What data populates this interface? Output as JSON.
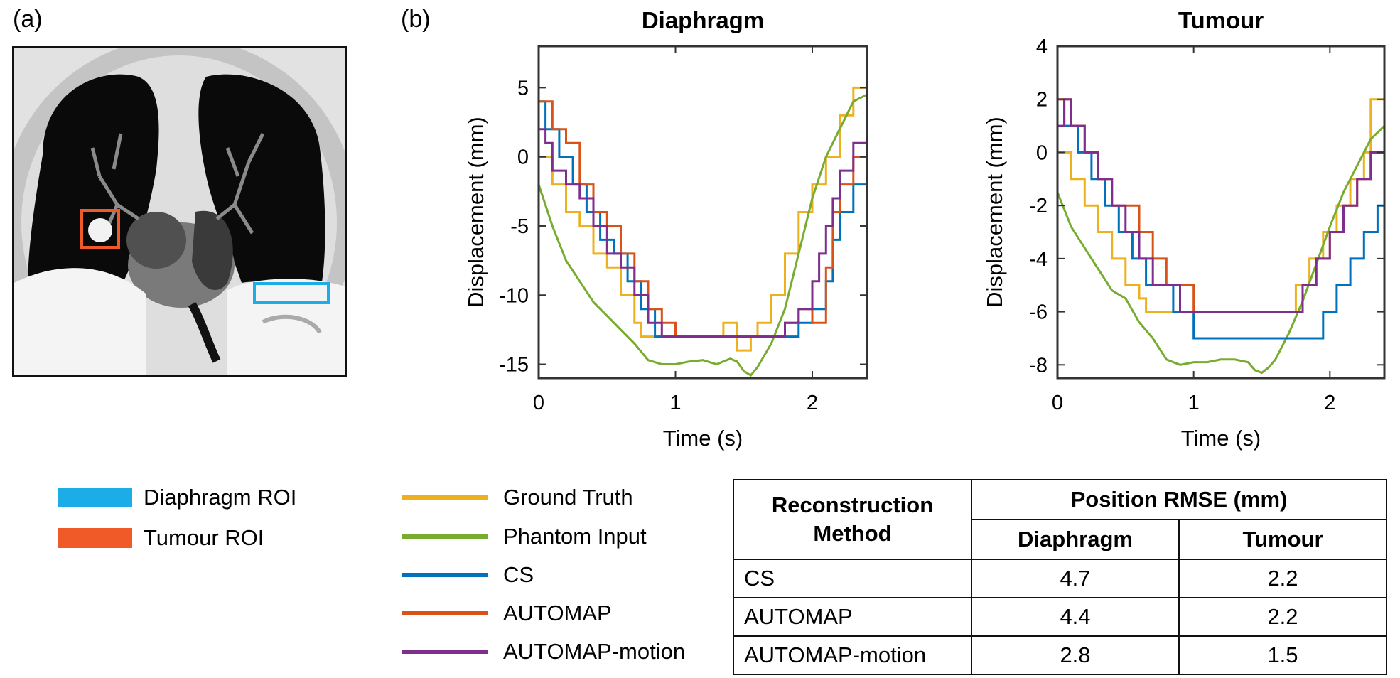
{
  "panel_labels": {
    "a": "(a)",
    "b": "(b)"
  },
  "roi_legend": [
    {
      "label": "Diaphragm ROI",
      "color": "#1cace8"
    },
    {
      "label": "Tumour ROI",
      "color": "#f05a28"
    }
  ],
  "series_legend": [
    {
      "label": "Ground Truth",
      "color": "#edb120"
    },
    {
      "label": "Phantom Input",
      "color": "#77ac30"
    },
    {
      "label": "CS",
      "color": "#0072bd"
    },
    {
      "label": "AUTOMAP",
      "color": "#d95319"
    },
    {
      "label": "AUTOMAP-motion",
      "color": "#7e2f8e"
    }
  ],
  "chart_data": [
    {
      "type": "line",
      "title": "Diaphragm",
      "xlabel": "Time (s)",
      "ylabel": "Displacement (mm)",
      "xlim": [
        0,
        2.4
      ],
      "ylim": [
        -16,
        8
      ],
      "xticks": [
        0,
        1,
        2
      ],
      "yticks": [
        5,
        0,
        -5,
        -10,
        -15
      ],
      "series": [
        {
          "name": "Ground Truth",
          "color": "#edb120",
          "step": true,
          "x": [
            0,
            0.1,
            0.2,
            0.3,
            0.4,
            0.5,
            0.6,
            0.7,
            0.75,
            1.3,
            1.35,
            1.45,
            1.55,
            1.6,
            1.7,
            1.8,
            1.9,
            2.0,
            2.1,
            2.2,
            2.3,
            2.4
          ],
          "y": [
            0,
            -2,
            -4,
            -5,
            -7,
            -8,
            -10,
            -12,
            -13,
            -13,
            -12,
            -14,
            -13,
            -12,
            -10,
            -7,
            -4,
            -2,
            0,
            3,
            5,
            7
          ]
        },
        {
          "name": "Phantom Input",
          "color": "#77ac30",
          "step": false,
          "x": [
            0,
            0.1,
            0.2,
            0.3,
            0.4,
            0.5,
            0.6,
            0.7,
            0.8,
            0.9,
            1.0,
            1.1,
            1.2,
            1.3,
            1.4,
            1.45,
            1.5,
            1.55,
            1.6,
            1.7,
            1.8,
            1.9,
            2.0,
            2.1,
            2.2,
            2.3,
            2.4
          ],
          "y": [
            -2,
            -5,
            -7.5,
            -9,
            -10.5,
            -11.5,
            -12.5,
            -13.5,
            -14.7,
            -15,
            -15,
            -14.8,
            -14.7,
            -15,
            -14.6,
            -14.8,
            -15.5,
            -15.8,
            -15.2,
            -13.5,
            -11,
            -7,
            -3,
            0,
            2,
            4,
            4.5
          ]
        },
        {
          "name": "CS",
          "color": "#0072bd",
          "step": true,
          "x": [
            0,
            0.05,
            0.15,
            0.25,
            0.35,
            0.45,
            0.55,
            0.65,
            0.75,
            0.85,
            1.0,
            1.7,
            1.8,
            1.9,
            2.0,
            2.1,
            2.15,
            2.2,
            2.3,
            2.4
          ],
          "y": [
            4,
            2,
            0,
            -2,
            -4,
            -6,
            -7,
            -9,
            -11,
            -13,
            -13,
            -13,
            -13,
            -12,
            -11,
            -9,
            -6,
            -4,
            -2,
            0
          ]
        },
        {
          "name": "AUTOMAP",
          "color": "#d95319",
          "step": true,
          "x": [
            0,
            0.1,
            0.2,
            0.3,
            0.4,
            0.5,
            0.6,
            0.7,
            0.8,
            0.9,
            1.0,
            1.7,
            1.8,
            1.9,
            2.0,
            2.1,
            2.15,
            2.2,
            2.3,
            2.4
          ],
          "y": [
            4,
            2,
            1,
            -2,
            -4,
            -5,
            -7,
            -9,
            -11,
            -12,
            -13,
            -13,
            -12,
            -11,
            -12,
            -8,
            -4,
            -2,
            0,
            4
          ]
        },
        {
          "name": "AUTOMAP-motion",
          "color": "#7e2f8e",
          "step": true,
          "x": [
            0,
            0.05,
            0.1,
            0.2,
            0.3,
            0.4,
            0.5,
            0.6,
            0.7,
            0.8,
            0.9,
            1.0,
            1.7,
            1.8,
            1.9,
            2.0,
            2.05,
            2.1,
            2.15,
            2.2,
            2.3,
            2.4
          ],
          "y": [
            2,
            1,
            -1,
            -2,
            -3,
            -5,
            -7,
            -8,
            -10,
            -12,
            -13,
            -13,
            -13,
            -12,
            -11,
            -9,
            -7,
            -5,
            -3,
            -1,
            1,
            4
          ]
        }
      ]
    },
    {
      "type": "line",
      "title": "Tumour",
      "xlabel": "Time (s)",
      "ylabel": "Displacement (mm)",
      "xlim": [
        0,
        2.4
      ],
      "ylim": [
        -8.5,
        4
      ],
      "xticks": [
        0,
        1,
        2
      ],
      "yticks": [
        4,
        2,
        0,
        -2,
        -4,
        -6,
        -8
      ],
      "series": [
        {
          "name": "Ground Truth",
          "color": "#edb120",
          "step": true,
          "x": [
            0,
            0.1,
            0.2,
            0.3,
            0.4,
            0.5,
            0.6,
            0.65,
            1.7,
            1.75,
            1.85,
            1.95,
            2.05,
            2.15,
            2.25,
            2.3,
            2.4
          ],
          "y": [
            0,
            -1,
            -2,
            -3,
            -4,
            -5,
            -5.5,
            -6,
            -6,
            -5,
            -4,
            -3,
            -2,
            -1,
            0,
            2,
            3
          ]
        },
        {
          "name": "Phantom Input",
          "color": "#77ac30",
          "step": false,
          "x": [
            0,
            0.1,
            0.2,
            0.3,
            0.4,
            0.5,
            0.6,
            0.7,
            0.8,
            0.9,
            1.0,
            1.1,
            1.2,
            1.3,
            1.4,
            1.45,
            1.5,
            1.55,
            1.6,
            1.7,
            1.8,
            1.9,
            2.0,
            2.1,
            2.2,
            2.3,
            2.4
          ],
          "y": [
            -1.5,
            -2.8,
            -3.6,
            -4.4,
            -5.2,
            -5.5,
            -6.4,
            -7,
            -7.8,
            -8,
            -7.9,
            -7.9,
            -7.8,
            -7.8,
            -7.9,
            -8.2,
            -8.3,
            -8.1,
            -7.8,
            -6.8,
            -5.6,
            -4.2,
            -2.8,
            -1.5,
            -0.5,
            0.5,
            1
          ]
        },
        {
          "name": "CS",
          "color": "#0072bd",
          "step": true,
          "x": [
            0,
            0.05,
            0.15,
            0.25,
            0.35,
            0.45,
            0.55,
            0.65,
            0.75,
            0.85,
            0.95,
            1.0,
            1.85,
            1.95,
            2.05,
            2.15,
            2.25,
            2.35,
            2.4
          ],
          "y": [
            2,
            1,
            0,
            -1,
            -2,
            -3,
            -4,
            -5,
            -5,
            -6,
            -6,
            -7,
            -7,
            -6,
            -5,
            -4,
            -3,
            -2,
            0
          ]
        },
        {
          "name": "AUTOMAP",
          "color": "#d95319",
          "step": true,
          "x": [
            0,
            0.1,
            0.2,
            0.3,
            0.4,
            0.5,
            0.6,
            0.7,
            0.8,
            0.9,
            1.0,
            1.7,
            1.8,
            1.9,
            2.0,
            2.1,
            2.2,
            2.3,
            2.4
          ],
          "y": [
            2,
            1,
            0,
            -1,
            -2,
            -2,
            -3,
            -4,
            -5,
            -5,
            -6,
            -6,
            -5,
            -4,
            -3,
            -2,
            -1,
            0,
            2
          ]
        },
        {
          "name": "AUTOMAP-motion",
          "color": "#7e2f8e",
          "step": true,
          "x": [
            0,
            0.05,
            0.1,
            0.2,
            0.3,
            0.4,
            0.5,
            0.6,
            0.7,
            0.8,
            0.9,
            1.0,
            1.7,
            1.8,
            1.9,
            2.0,
            2.1,
            2.2,
            2.3,
            2.4
          ],
          "y": [
            1,
            2,
            1,
            0,
            -1,
            -2,
            -3,
            -4,
            -5,
            -5,
            -6,
            -6,
            -6,
            -5,
            -4,
            -3,
            -2,
            -1,
            0,
            2
          ]
        }
      ]
    }
  ],
  "table": {
    "method_header_line1": "Reconstruction",
    "method_header_line2": "Method",
    "group_header": "Position RMSE (mm)",
    "col_diaphragm": "Diaphragm",
    "col_tumour": "Tumour",
    "rows": [
      {
        "method": "CS",
        "diaphragm": "4.7",
        "tumour": "2.2"
      },
      {
        "method": "AUTOMAP",
        "diaphragm": "4.4",
        "tumour": "2.2"
      },
      {
        "method": "AUTOMAP-motion",
        "diaphragm": "2.8",
        "tumour": "1.5"
      }
    ]
  }
}
